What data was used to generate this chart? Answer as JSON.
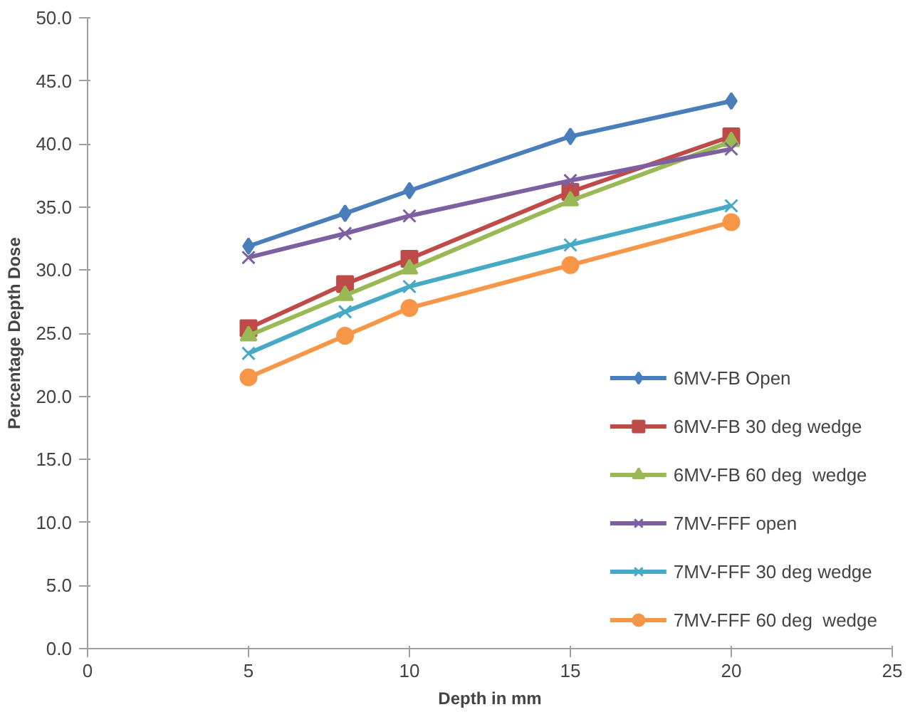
{
  "chart_data": {
    "type": "line",
    "xlabel": "Depth in mm",
    "ylabel": "Percentage Depth Dose",
    "x": [
      5,
      8,
      10,
      15,
      20
    ],
    "series": [
      {
        "name": "6MV-FB Open",
        "color": "#4a7ebb",
        "marker": "diamond",
        "values": [
          31.9,
          34.5,
          36.3,
          40.6,
          43.4
        ]
      },
      {
        "name": "6MV-FB 30 deg wedge",
        "color": "#be4b48",
        "marker": "square",
        "values": [
          25.4,
          28.9,
          30.9,
          36.2,
          40.6
        ]
      },
      {
        "name": "6MV-FB 60 deg  wedge",
        "color": "#98b954",
        "marker": "triangle",
        "values": [
          24.8,
          28.0,
          30.1,
          35.5,
          40.2
        ]
      },
      {
        "name": "7MV-FFF open",
        "color": "#7d60a0",
        "marker": "cross",
        "values": [
          31.0,
          32.9,
          34.3,
          37.1,
          39.6
        ]
      },
      {
        "name": "7MV-FFF 30 deg wedge",
        "color": "#46aac5",
        "marker": "cross",
        "values": [
          23.4,
          26.7,
          28.7,
          32.0,
          35.1
        ]
      },
      {
        "name": "7MV-FFF 60 deg  wedge",
        "color": "#f79646",
        "marker": "circle",
        "values": [
          21.5,
          24.8,
          27.0,
          30.4,
          33.8
        ]
      }
    ],
    "xlim": [
      0,
      25
    ],
    "xticks": [
      0,
      5,
      10,
      15,
      20,
      25
    ],
    "ylim": [
      0,
      50
    ],
    "yticks": [
      {
        "value": 0,
        "label": "0.0"
      },
      {
        "value": 5,
        "label": "5.0"
      },
      {
        "value": 10,
        "label": "10.0"
      },
      {
        "value": 15,
        "label": "15.0"
      },
      {
        "value": 20,
        "label": "20.0"
      },
      {
        "value": 25,
        "label": "25.0"
      },
      {
        "value": 30,
        "label": "30.0"
      },
      {
        "value": 35,
        "label": "35.0"
      },
      {
        "value": 40,
        "label": "40.0"
      },
      {
        "value": 45,
        "label": "45.0"
      },
      {
        "value": 50,
        "label": "50.0"
      }
    ],
    "grid": false,
    "legend": "bottom right",
    "line_style": "solid"
  }
}
